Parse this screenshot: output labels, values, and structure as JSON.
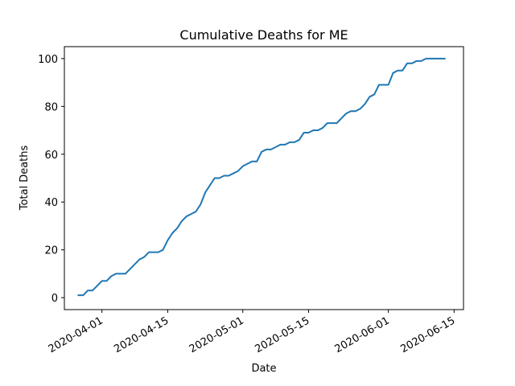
{
  "chart_data": {
    "type": "line",
    "title": "Cumulative Deaths for ME",
    "xlabel": "Date",
    "ylabel": "Total Deaths",
    "x_ticks": [
      "2020-04-01",
      "2020-04-15",
      "2020-05-01",
      "2020-05-15",
      "2020-06-01",
      "2020-06-15"
    ],
    "y_ticks": [
      0,
      20,
      40,
      60,
      80,
      100
    ],
    "xlim": [
      "2020-03-24",
      "2020-06-17"
    ],
    "ylim": [
      -5,
      105
    ],
    "grid": false,
    "series": [
      {
        "color": "#1f77b4",
        "x": [
          "2020-03-27",
          "2020-03-28",
          "2020-03-29",
          "2020-03-30",
          "2020-03-31",
          "2020-04-01",
          "2020-04-02",
          "2020-04-03",
          "2020-04-04",
          "2020-04-05",
          "2020-04-06",
          "2020-04-07",
          "2020-04-08",
          "2020-04-09",
          "2020-04-10",
          "2020-04-11",
          "2020-04-12",
          "2020-04-13",
          "2020-04-14",
          "2020-04-15",
          "2020-04-16",
          "2020-04-17",
          "2020-04-18",
          "2020-04-19",
          "2020-04-20",
          "2020-04-21",
          "2020-04-22",
          "2020-04-23",
          "2020-04-24",
          "2020-04-25",
          "2020-04-26",
          "2020-04-27",
          "2020-04-28",
          "2020-04-29",
          "2020-04-30",
          "2020-05-01",
          "2020-05-02",
          "2020-05-03",
          "2020-05-04",
          "2020-05-05",
          "2020-05-06",
          "2020-05-07",
          "2020-05-08",
          "2020-05-09",
          "2020-05-10",
          "2020-05-11",
          "2020-05-12",
          "2020-05-13",
          "2020-05-14",
          "2020-05-15",
          "2020-05-16",
          "2020-05-17",
          "2020-05-18",
          "2020-05-19",
          "2020-05-20",
          "2020-05-21",
          "2020-05-22",
          "2020-05-23",
          "2020-05-24",
          "2020-05-25",
          "2020-05-26",
          "2020-05-27",
          "2020-05-28",
          "2020-05-29",
          "2020-05-30",
          "2020-05-31",
          "2020-06-01",
          "2020-06-02",
          "2020-06-03",
          "2020-06-04",
          "2020-06-05",
          "2020-06-06",
          "2020-06-07",
          "2020-06-08",
          "2020-06-09",
          "2020-06-10",
          "2020-06-11",
          "2020-06-12",
          "2020-06-13"
        ],
        "values": [
          1,
          1,
          3,
          3,
          5,
          7,
          7,
          9,
          10,
          10,
          10,
          12,
          14,
          16,
          17,
          19,
          19,
          19,
          20,
          24,
          27,
          29,
          32,
          34,
          35,
          36,
          39,
          44,
          47,
          50,
          50,
          51,
          51,
          52,
          53,
          55,
          56,
          57,
          57,
          61,
          62,
          62,
          63,
          64,
          64,
          65,
          65,
          66,
          69,
          69,
          70,
          70,
          71,
          73,
          73,
          73,
          75,
          77,
          78,
          78,
          79,
          81,
          84,
          85,
          89,
          89,
          89,
          94,
          95,
          95,
          98,
          98,
          99,
          99,
          100,
          100,
          100,
          100,
          100
        ]
      }
    ]
  }
}
